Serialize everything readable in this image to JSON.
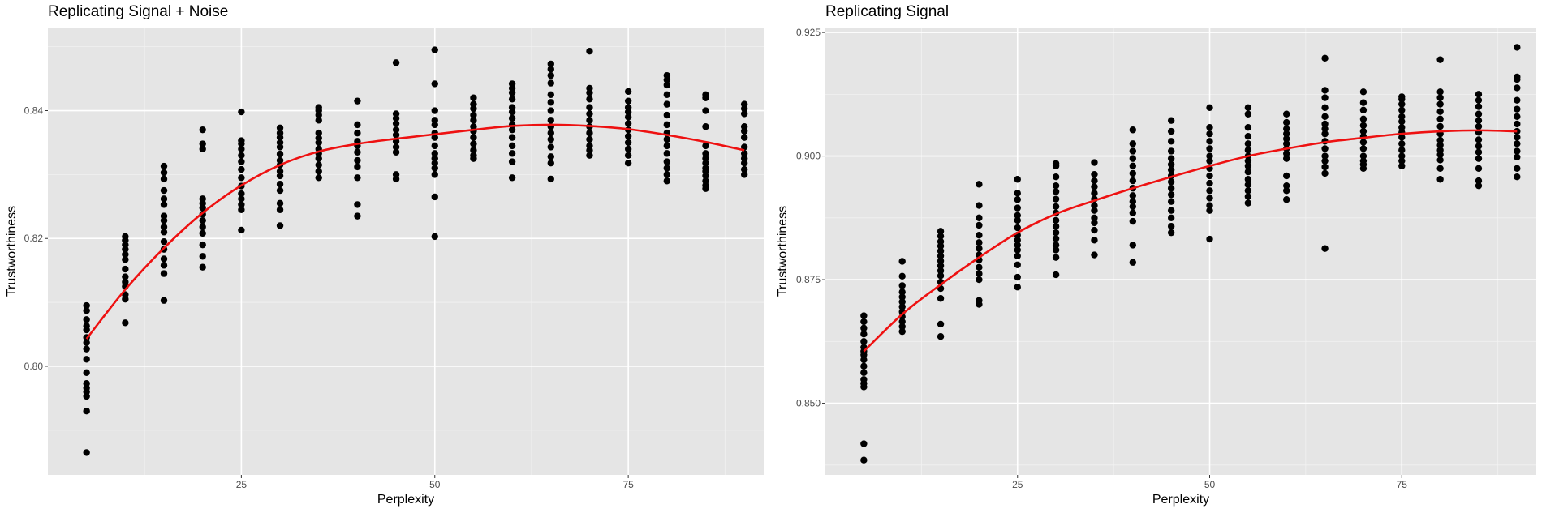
{
  "chart_data": [
    {
      "type": "scatter",
      "title": "Replicating Signal + Noise",
      "xlabel": "Perplexity",
      "ylabel": "Trustworthiness",
      "xlim": [
        0,
        92.5
      ],
      "ylim": [
        0.783,
        0.853
      ],
      "x_ticks": [
        25,
        50,
        75
      ],
      "x_tick_labels": [
        "25",
        "50",
        "75"
      ],
      "y_ticks": [
        0.8,
        0.82,
        0.84
      ],
      "y_tick_labels": [
        "0.80",
        "0.82",
        "0.84"
      ],
      "grid": true,
      "point_color": "#000000",
      "line_color": "#ee1111",
      "panel_bg": "#e5e5e5",
      "points": [
        {
          "x": 5,
          "y": [
            0.7865,
            0.793,
            0.7953,
            0.796,
            0.7966,
            0.7973,
            0.799,
            0.8011,
            0.8027,
            0.8037,
            0.8045,
            0.8057,
            0.8063,
            0.8073,
            0.8087,
            0.8095
          ]
        },
        {
          "x": 10,
          "y": [
            0.8068,
            0.8105,
            0.8112,
            0.8125,
            0.8132,
            0.814,
            0.8152,
            0.8167,
            0.8175,
            0.8183,
            0.819,
            0.8197,
            0.8203
          ]
        },
        {
          "x": 15,
          "y": [
            0.8103,
            0.8145,
            0.8158,
            0.8168,
            0.8183,
            0.8195,
            0.821,
            0.8218,
            0.8228,
            0.8235,
            0.8253,
            0.8262,
            0.8275,
            0.8293,
            0.8303,
            0.8313
          ]
        },
        {
          "x": 20,
          "y": [
            0.8155,
            0.8172,
            0.819,
            0.8208,
            0.8218,
            0.8228,
            0.8238,
            0.8248,
            0.8255,
            0.8262,
            0.834,
            0.8348,
            0.837
          ]
        },
        {
          "x": 25,
          "y": [
            0.8213,
            0.8245,
            0.8253,
            0.8262,
            0.827,
            0.8282,
            0.8295,
            0.8308,
            0.832,
            0.833,
            0.834,
            0.8348,
            0.8353,
            0.8398
          ]
        },
        {
          "x": 30,
          "y": [
            0.822,
            0.8245,
            0.8255,
            0.8275,
            0.8285,
            0.8298,
            0.8305,
            0.8315,
            0.8322,
            0.8332,
            0.8343,
            0.835,
            0.8358,
            0.8365,
            0.8373
          ]
        },
        {
          "x": 35,
          "y": [
            0.8295,
            0.8305,
            0.8315,
            0.8325,
            0.8333,
            0.834,
            0.835,
            0.8357,
            0.8365,
            0.8385,
            0.8393,
            0.84,
            0.8405
          ]
        },
        {
          "x": 40,
          "y": [
            0.8235,
            0.8253,
            0.8295,
            0.8312,
            0.8322,
            0.8335,
            0.8345,
            0.8352,
            0.8365,
            0.8378,
            0.8415
          ]
        },
        {
          "x": 45,
          "y": [
            0.8293,
            0.83,
            0.8335,
            0.8343,
            0.8352,
            0.8362,
            0.837,
            0.838,
            0.8388,
            0.8395,
            0.8475
          ]
        },
        {
          "x": 50,
          "y": [
            0.8203,
            0.8265,
            0.83,
            0.831,
            0.8318,
            0.8325,
            0.8333,
            0.8345,
            0.8358,
            0.8365,
            0.8378,
            0.8385,
            0.84,
            0.8442,
            0.8495
          ]
        },
        {
          "x": 55,
          "y": [
            0.8325,
            0.833,
            0.8338,
            0.8348,
            0.8358,
            0.8368,
            0.8375,
            0.8385,
            0.8393,
            0.8403,
            0.841,
            0.842
          ]
        },
        {
          "x": 60,
          "y": [
            0.8295,
            0.832,
            0.8333,
            0.8345,
            0.8358,
            0.837,
            0.8378,
            0.8388,
            0.8398,
            0.8405,
            0.8418,
            0.8428,
            0.8435,
            0.8442
          ]
        },
        {
          "x": 65,
          "y": [
            0.8293,
            0.8318,
            0.8328,
            0.8343,
            0.8355,
            0.8365,
            0.8375,
            0.8385,
            0.84,
            0.8413,
            0.8425,
            0.8443,
            0.8455,
            0.8465,
            0.8473
          ]
        },
        {
          "x": 70,
          "y": [
            0.833,
            0.8338,
            0.8345,
            0.8355,
            0.8365,
            0.8375,
            0.8385,
            0.8395,
            0.8405,
            0.8418,
            0.8428,
            0.8435,
            0.8493
          ]
        },
        {
          "x": 75,
          "y": [
            0.8318,
            0.833,
            0.834,
            0.835,
            0.836,
            0.837,
            0.838,
            0.839,
            0.8398,
            0.8405,
            0.8415,
            0.843
          ]
        },
        {
          "x": 80,
          "y": [
            0.829,
            0.83,
            0.831,
            0.832,
            0.8333,
            0.8345,
            0.8355,
            0.8365,
            0.8378,
            0.8393,
            0.841,
            0.8425,
            0.844,
            0.8448,
            0.8455
          ]
        },
        {
          "x": 85,
          "y": [
            0.8278,
            0.8283,
            0.829,
            0.8298,
            0.8305,
            0.831,
            0.8318,
            0.8325,
            0.8333,
            0.8345,
            0.8375,
            0.84,
            0.842,
            0.8425
          ]
        },
        {
          "x": 90,
          "y": [
            0.83,
            0.8308,
            0.8318,
            0.8325,
            0.8333,
            0.8343,
            0.8358,
            0.8368,
            0.8375,
            0.8395,
            0.8403,
            0.841
          ]
        }
      ],
      "fit_line": {
        "x": [
          5,
          10,
          15,
          20,
          25,
          30,
          35,
          40,
          45,
          50,
          55,
          60,
          65,
          70,
          75,
          80,
          85,
          90
        ],
        "y": [
          0.8043,
          0.812,
          0.8185,
          0.824,
          0.8283,
          0.8315,
          0.8336,
          0.8348,
          0.8356,
          0.8363,
          0.837,
          0.8376,
          0.8378,
          0.8376,
          0.8371,
          0.8362,
          0.8351,
          0.8338
        ]
      }
    },
    {
      "type": "scatter",
      "title": "Replicating Signal",
      "xlabel": "Perplexity",
      "ylabel": "Trustworthiness",
      "xlim": [
        0,
        92.5
      ],
      "ylim": [
        0.8355,
        0.926
      ],
      "x_ticks": [
        25,
        50,
        75
      ],
      "x_tick_labels": [
        "25",
        "50",
        "75"
      ],
      "y_ticks": [
        0.85,
        0.875,
        0.9,
        0.925
      ],
      "y_tick_labels": [
        "0.850",
        "0.875",
        "0.900",
        "0.925"
      ],
      "grid": true,
      "point_color": "#000000",
      "line_color": "#ee1111",
      "panel_bg": "#e5e5e5",
      "points": [
        {
          "x": 5,
          "y": [
            0.8385,
            0.8418,
            0.8533,
            0.854,
            0.8548,
            0.8562,
            0.8575,
            0.8588,
            0.8598,
            0.8605,
            0.8613,
            0.8625,
            0.864,
            0.8652,
            0.8665,
            0.8677
          ]
        },
        {
          "x": 10,
          "y": [
            0.8645,
            0.8655,
            0.8665,
            0.8675,
            0.8685,
            0.8695,
            0.8705,
            0.8715,
            0.8725,
            0.8738,
            0.8757,
            0.8787
          ]
        },
        {
          "x": 15,
          "y": [
            0.8635,
            0.866,
            0.8712,
            0.8732,
            0.8745,
            0.8758,
            0.8768,
            0.8778,
            0.8788,
            0.8798,
            0.8808,
            0.8818,
            0.8827,
            0.8838,
            0.8848
          ]
        },
        {
          "x": 20,
          "y": [
            0.87,
            0.8708,
            0.875,
            0.8762,
            0.8775,
            0.879,
            0.88,
            0.8813,
            0.8825,
            0.884,
            0.886,
            0.8875,
            0.89,
            0.8943
          ]
        },
        {
          "x": 25,
          "y": [
            0.8735,
            0.8755,
            0.878,
            0.8798,
            0.881,
            0.882,
            0.883,
            0.884,
            0.8855,
            0.887,
            0.888,
            0.8895,
            0.8912,
            0.8925,
            0.8953
          ]
        },
        {
          "x": 30,
          "y": [
            0.876,
            0.8795,
            0.881,
            0.882,
            0.8833,
            0.8845,
            0.8858,
            0.887,
            0.8885,
            0.8898,
            0.8913,
            0.8928,
            0.894,
            0.8958,
            0.898,
            0.8985
          ]
        },
        {
          "x": 35,
          "y": [
            0.88,
            0.883,
            0.885,
            0.8865,
            0.8875,
            0.889,
            0.89,
            0.8913,
            0.8925,
            0.8938,
            0.895,
            0.8963,
            0.8987
          ]
        },
        {
          "x": 40,
          "y": [
            0.8785,
            0.882,
            0.8868,
            0.8885,
            0.8898,
            0.8908,
            0.892,
            0.8935,
            0.895,
            0.8965,
            0.898,
            0.8995,
            0.901,
            0.9025,
            0.9053
          ]
        },
        {
          "x": 45,
          "y": [
            0.8845,
            0.8858,
            0.8875,
            0.889,
            0.8908,
            0.8922,
            0.8935,
            0.8948,
            0.896,
            0.8972,
            0.8983,
            0.8995,
            0.901,
            0.903,
            0.905,
            0.9072
          ]
        },
        {
          "x": 50,
          "y": [
            0.8832,
            0.889,
            0.89,
            0.8915,
            0.893,
            0.8945,
            0.896,
            0.8975,
            0.899,
            0.9,
            0.9015,
            0.903,
            0.9045,
            0.9058,
            0.9098
          ]
        },
        {
          "x": 55,
          "y": [
            0.8905,
            0.8918,
            0.893,
            0.8942,
            0.8953,
            0.8968,
            0.898,
            0.899,
            0.9,
            0.9012,
            0.9025,
            0.904,
            0.9058,
            0.9085,
            0.9098
          ]
        },
        {
          "x": 60,
          "y": [
            0.8912,
            0.893,
            0.894,
            0.896,
            0.8995,
            0.9005,
            0.9015,
            0.9025,
            0.9035,
            0.9045,
            0.9055,
            0.9068,
            0.9085
          ]
        },
        {
          "x": 65,
          "y": [
            0.8813,
            0.8965,
            0.8978,
            0.899,
            0.9,
            0.9015,
            0.903,
            0.9045,
            0.9055,
            0.9065,
            0.908,
            0.9098,
            0.9118,
            0.9133,
            0.9198
          ]
        },
        {
          "x": 70,
          "y": [
            0.8975,
            0.8983,
            0.899,
            0.9,
            0.9015,
            0.9028,
            0.904,
            0.905,
            0.9062,
            0.9075,
            0.9093,
            0.9108,
            0.913
          ]
        },
        {
          "x": 75,
          "y": [
            0.898,
            0.899,
            0.9,
            0.9012,
            0.9025,
            0.9038,
            0.9048,
            0.9058,
            0.907,
            0.908,
            0.9093,
            0.9105,
            0.9115,
            0.912
          ]
        },
        {
          "x": 80,
          "y": [
            0.8953,
            0.8975,
            0.8992,
            0.9003,
            0.9012,
            0.9022,
            0.9032,
            0.9045,
            0.906,
            0.9075,
            0.909,
            0.9105,
            0.9118,
            0.913,
            0.9195
          ]
        },
        {
          "x": 85,
          "y": [
            0.894,
            0.895,
            0.8975,
            0.8995,
            0.9008,
            0.902,
            0.9033,
            0.9048,
            0.906,
            0.9072,
            0.9085,
            0.91,
            0.9113,
            0.9125
          ]
        },
        {
          "x": 90,
          "y": [
            0.8958,
            0.8975,
            0.8998,
            0.901,
            0.9025,
            0.9038,
            0.905,
            0.9065,
            0.908,
            0.9095,
            0.9113,
            0.9138,
            0.9155,
            0.916,
            0.922
          ]
        }
      ],
      "fit_line": {
        "x": [
          5,
          10,
          15,
          20,
          25,
          30,
          35,
          40,
          45,
          50,
          55,
          60,
          65,
          70,
          75,
          80,
          85,
          90
        ],
        "y": [
          0.8605,
          0.868,
          0.874,
          0.8795,
          0.8845,
          0.8883,
          0.891,
          0.8935,
          0.8958,
          0.898,
          0.9,
          0.9015,
          0.9028,
          0.9037,
          0.9045,
          0.905,
          0.9052,
          0.905
        ]
      }
    }
  ]
}
